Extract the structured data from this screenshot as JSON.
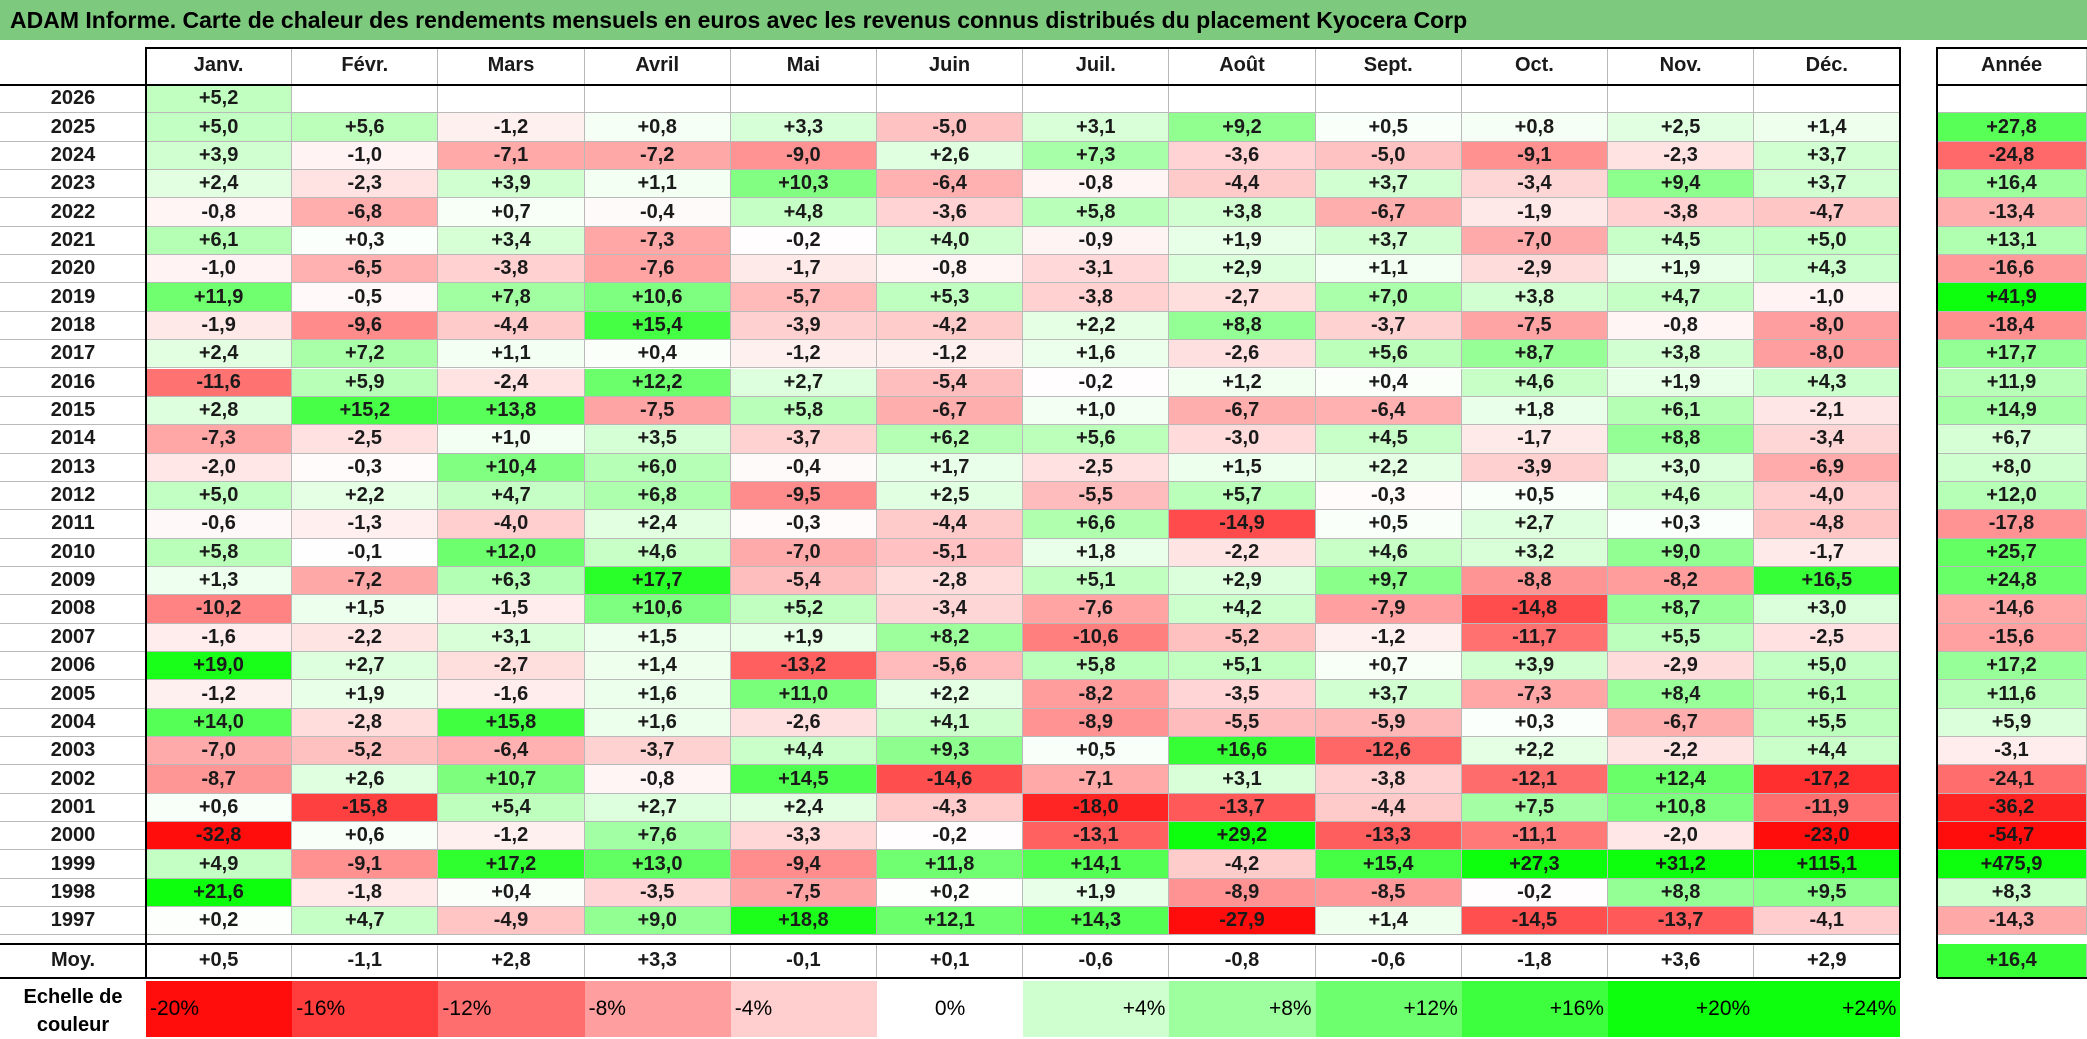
{
  "title": "ADAM Informe. Carte de chaleur des rendements mensuels en euros avec les revenus connus distribués du placement Kyocera Corp",
  "chart_data": {
    "type": "heatmap",
    "title": "ADAM Informe. Carte de chaleur des rendements mensuels en euros avec les revenus connus distribués du placement Kyocera Corp",
    "columns": [
      "Janv.",
      "Févr.",
      "Mars",
      "Avril",
      "Mai",
      "Juin",
      "Juil.",
      "Août",
      "Sept.",
      "Oct.",
      "Nov.",
      "Déc."
    ],
    "year_header": "Année",
    "rows": [
      {
        "year": "2026",
        "values": [
          "+5,2",
          null,
          null,
          null,
          null,
          null,
          null,
          null,
          null,
          null,
          null,
          null
        ],
        "annual": null
      },
      {
        "year": "2025",
        "values": [
          "+5,0",
          "+5,6",
          "-1,2",
          "+0,8",
          "+3,3",
          "-5,0",
          "+3,1",
          "+9,2",
          "+0,5",
          "+0,8",
          "+2,5",
          "+1,4"
        ],
        "annual": "+27,8"
      },
      {
        "year": "2024",
        "values": [
          "+3,9",
          "-1,0",
          "-7,1",
          "-7,2",
          "-9,0",
          "+2,6",
          "+7,3",
          "-3,6",
          "-5,0",
          "-9,1",
          "-2,3",
          "+3,7"
        ],
        "annual": "-24,8"
      },
      {
        "year": "2023",
        "values": [
          "+2,4",
          "-2,3",
          "+3,9",
          "+1,1",
          "+10,3",
          "-6,4",
          "-0,8",
          "-4,4",
          "+3,7",
          "-3,4",
          "+9,4",
          "+3,7"
        ],
        "annual": "+16,4"
      },
      {
        "year": "2022",
        "values": [
          "-0,8",
          "-6,8",
          "+0,7",
          "-0,4",
          "+4,8",
          "-3,6",
          "+5,8",
          "+3,8",
          "-6,7",
          "-1,9",
          "-3,8",
          "-4,7"
        ],
        "annual": "-13,4"
      },
      {
        "year": "2021",
        "values": [
          "+6,1",
          "+0,3",
          "+3,4",
          "-7,3",
          "-0,2",
          "+4,0",
          "-0,9",
          "+1,9",
          "+3,7",
          "-7,0",
          "+4,5",
          "+5,0"
        ],
        "annual": "+13,1"
      },
      {
        "year": "2020",
        "values": [
          "-1,0",
          "-6,5",
          "-3,8",
          "-7,6",
          "-1,7",
          "-0,8",
          "-3,1",
          "+2,9",
          "+1,1",
          "-2,9",
          "+1,9",
          "+4,3"
        ],
        "annual": "-16,6"
      },
      {
        "year": "2019",
        "values": [
          "+11,9",
          "-0,5",
          "+7,8",
          "+10,6",
          "-5,7",
          "+5,3",
          "-3,8",
          "-2,7",
          "+7,0",
          "+3,8",
          "+4,7",
          "-1,0"
        ],
        "annual": "+41,9"
      },
      {
        "year": "2018",
        "values": [
          "-1,9",
          "-9,6",
          "-4,4",
          "+15,4",
          "-3,9",
          "-4,2",
          "+2,2",
          "+8,8",
          "-3,7",
          "-7,5",
          "-0,8",
          "-8,0"
        ],
        "annual": "-18,4"
      },
      {
        "year": "2017",
        "values": [
          "+2,4",
          "+7,2",
          "+1,1",
          "+0,4",
          "-1,2",
          "-1,2",
          "+1,6",
          "-2,6",
          "+5,6",
          "+8,7",
          "+3,8",
          "-8,0"
        ],
        "annual": "+17,7"
      },
      {
        "year": "2016",
        "values": [
          "-11,6",
          "+5,9",
          "-2,4",
          "+12,2",
          "+2,7",
          "-5,4",
          "-0,2",
          "+1,2",
          "+0,4",
          "+4,6",
          "+1,9",
          "+4,3"
        ],
        "annual": "+11,9"
      },
      {
        "year": "2015",
        "values": [
          "+2,8",
          "+15,2",
          "+13,8",
          "-7,5",
          "+5,8",
          "-6,7",
          "+1,0",
          "-6,7",
          "-6,4",
          "+1,8",
          "+6,1",
          "-2,1"
        ],
        "annual": "+14,9"
      },
      {
        "year": "2014",
        "values": [
          "-7,3",
          "-2,5",
          "+1,0",
          "+3,5",
          "-3,7",
          "+6,2",
          "+5,6",
          "-3,0",
          "+4,5",
          "-1,7",
          "+8,8",
          "-3,4"
        ],
        "annual": "+6,7"
      },
      {
        "year": "2013",
        "values": [
          "-2,0",
          "-0,3",
          "+10,4",
          "+6,0",
          "-0,4",
          "+1,7",
          "-2,5",
          "+1,5",
          "+2,2",
          "-3,9",
          "+3,0",
          "-6,9"
        ],
        "annual": "+8,0"
      },
      {
        "year": "2012",
        "values": [
          "+5,0",
          "+2,2",
          "+4,7",
          "+6,8",
          "-9,5",
          "+2,5",
          "-5,5",
          "+5,7",
          "-0,3",
          "+0,5",
          "+4,6",
          "-4,0"
        ],
        "annual": "+12,0"
      },
      {
        "year": "2011",
        "values": [
          "-0,6",
          "-1,3",
          "-4,0",
          "+2,4",
          "-0,3",
          "-4,4",
          "+6,6",
          "-14,9",
          "+0,5",
          "+2,7",
          "+0,3",
          "-4,8"
        ],
        "annual": "-17,8"
      },
      {
        "year": "2010",
        "values": [
          "+5,8",
          "-0,1",
          "+12,0",
          "+4,6",
          "-7,0",
          "-5,1",
          "+1,8",
          "-2,2",
          "+4,6",
          "+3,2",
          "+9,0",
          "-1,7"
        ],
        "annual": "+25,7"
      },
      {
        "year": "2009",
        "values": [
          "+1,3",
          "-7,2",
          "+6,3",
          "+17,7",
          "-5,4",
          "-2,8",
          "+5,1",
          "+2,9",
          "+9,7",
          "-8,8",
          "-8,2",
          "+16,5"
        ],
        "annual": "+24,8"
      },
      {
        "year": "2008",
        "values": [
          "-10,2",
          "+1,5",
          "-1,5",
          "+10,6",
          "+5,2",
          "-3,4",
          "-7,6",
          "+4,2",
          "-7,9",
          "-14,8",
          "+8,7",
          "+3,0"
        ],
        "annual": "-14,6"
      },
      {
        "year": "2007",
        "values": [
          "-1,6",
          "-2,2",
          "+3,1",
          "+1,5",
          "+1,9",
          "+8,2",
          "-10,6",
          "-5,2",
          "-1,2",
          "-11,7",
          "+5,5",
          "-2,5"
        ],
        "annual": "-15,6"
      },
      {
        "year": "2006",
        "values": [
          "+19,0",
          "+2,7",
          "-2,7",
          "+1,4",
          "-13,2",
          "-5,6",
          "+5,8",
          "+5,1",
          "+0,7",
          "+3,9",
          "-2,9",
          "+5,0"
        ],
        "annual": "+17,2"
      },
      {
        "year": "2005",
        "values": [
          "-1,2",
          "+1,9",
          "-1,6",
          "+1,6",
          "+11,0",
          "+2,2",
          "-8,2",
          "-3,5",
          "+3,7",
          "-7,3",
          "+8,4",
          "+6,1"
        ],
        "annual": "+11,6"
      },
      {
        "year": "2004",
        "values": [
          "+14,0",
          "-2,8",
          "+15,8",
          "+1,6",
          "-2,6",
          "+4,1",
          "-8,9",
          "-5,5",
          "-5,9",
          "+0,3",
          "-6,7",
          "+5,5"
        ],
        "annual": "+5,9"
      },
      {
        "year": "2003",
        "values": [
          "-7,0",
          "-5,2",
          "-6,4",
          "-3,7",
          "+4,4",
          "+9,3",
          "+0,5",
          "+16,6",
          "-12,6",
          "+2,2",
          "-2,2",
          "+4,4"
        ],
        "annual": "-3,1"
      },
      {
        "year": "2002",
        "values": [
          "-8,7",
          "+2,6",
          "+10,7",
          "-0,8",
          "+14,5",
          "-14,6",
          "-7,1",
          "+3,1",
          "-3,8",
          "-12,1",
          "+12,4",
          "-17,2"
        ],
        "annual": "-24,1"
      },
      {
        "year": "2001",
        "values": [
          "+0,6",
          "-15,8",
          "+5,4",
          "+2,7",
          "+2,4",
          "-4,3",
          "-18,0",
          "-13,7",
          "-4,4",
          "+7,5",
          "+10,8",
          "-11,9"
        ],
        "annual": "-36,2"
      },
      {
        "year": "2000",
        "values": [
          "-32,8",
          "+0,6",
          "-1,2",
          "+7,6",
          "-3,3",
          "-0,2",
          "-13,1",
          "+29,2",
          "-13,3",
          "-11,1",
          "-2,0",
          "-23,0"
        ],
        "annual": "-54,7"
      },
      {
        "year": "1999",
        "values": [
          "+4,9",
          "-9,1",
          "+17,2",
          "+13,0",
          "-9,4",
          "+11,8",
          "+14,1",
          "-4,2",
          "+15,4",
          "+27,3",
          "+31,2",
          "+115,1"
        ],
        "annual": "+475,9"
      },
      {
        "year": "1998",
        "values": [
          "+21,6",
          "-1,8",
          "+0,4",
          "-3,5",
          "-7,5",
          "+0,2",
          "+1,9",
          "-8,9",
          "-8,5",
          "-0,2",
          "+8,8",
          "+9,5"
        ],
        "annual": "+8,3"
      },
      {
        "year": "1997",
        "values": [
          "+0,2",
          "+4,7",
          "-4,9",
          "+9,0",
          "+18,8",
          "+12,1",
          "+14,3",
          "-27,9",
          "+1,4",
          "-14,5",
          "-13,7",
          "-4,1"
        ],
        "annual": "-14,3"
      }
    ],
    "average": {
      "label": "Moy.",
      "values": [
        "+0,5",
        "-1,1",
        "+2,8",
        "+3,3",
        "-0,1",
        "+0,1",
        "-0,6",
        "-0,8",
        "-0,6",
        "-1,8",
        "+3,6",
        "+2,9"
      ],
      "annual": "+16,4"
    },
    "color_scale": {
      "label": "Echelle de couleur",
      "stops": [
        "-20%",
        "-16%",
        "-12%",
        "-8%",
        "-4%",
        "0%",
        "+4%",
        "+8%",
        "+12%",
        "+16%",
        "+20%",
        "+24%"
      ],
      "negative_color": "#ff0000",
      "neutral_color": "#ffffff",
      "positive_color": "#00ff00"
    }
  }
}
